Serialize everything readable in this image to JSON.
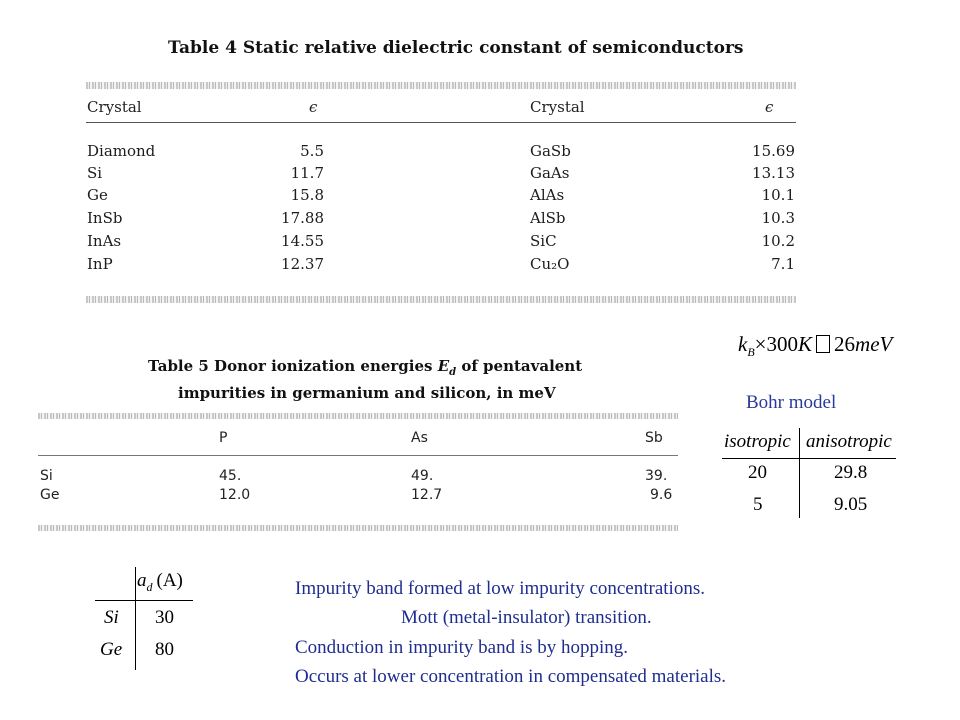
{
  "table4": {
    "title": "Table 4  Static relative dielectric constant of semiconductors",
    "headers": {
      "crystal_left": "Crystal",
      "eps_left": "ϵ",
      "crystal_right": "Crystal",
      "eps_right": "ϵ"
    },
    "rows_left": [
      {
        "crystal": "Diamond",
        "eps": "5.5"
      },
      {
        "crystal": "Si",
        "eps": "11.7"
      },
      {
        "crystal": "Ge",
        "eps": "15.8"
      },
      {
        "crystal": "InSb",
        "eps": "17.88"
      },
      {
        "crystal": "InAs",
        "eps": "14.55"
      },
      {
        "crystal": "InP",
        "eps": "12.37"
      }
    ],
    "rows_right": [
      {
        "crystal": "GaSb",
        "eps": "15.69"
      },
      {
        "crystal": "GaAs",
        "eps": "13.13"
      },
      {
        "crystal": "AlAs",
        "eps": "10.1"
      },
      {
        "crystal": "AlSb",
        "eps": "10.3"
      },
      {
        "crystal": "SiC",
        "eps": "10.2"
      },
      {
        "crystal": "Cu₂O",
        "eps": "7.1"
      }
    ]
  },
  "table5": {
    "title_line1": "Table 5  Donor ionization energies E_d of pentavalent",
    "title_line1_pre": "Table 5  Donor ionization energies ",
    "title_line1_E": "E",
    "title_line1_sub": "d",
    "title_line1_post": " of pentavalent",
    "title_line2": "impurities in germanium and silicon, in meV",
    "headers": [
      "P",
      "As",
      "Sb"
    ],
    "rows": [
      {
        "label": "Si",
        "values": [
          "45.",
          "49.",
          "39."
        ]
      },
      {
        "label": "Ge",
        "values": [
          "12.0",
          "12.7",
          "9.6"
        ]
      }
    ]
  },
  "formula": {
    "k": "k",
    "k_sub": "B",
    "times": "×300",
    "K": "K",
    "box": "",
    "rhs": "26",
    "meV": "meV"
  },
  "bohr_model": {
    "title": "Bohr model",
    "headers": [
      "isotropic",
      "anisotropic"
    ],
    "rows": [
      [
        "20",
        "29.8"
      ],
      [
        "5",
        "9.05"
      ]
    ]
  },
  "ad_table": {
    "header_a": "a",
    "header_sub": "d",
    "header_unit": "(A)",
    "rows": [
      {
        "label": "Si",
        "value": "30"
      },
      {
        "label": "Ge",
        "value": "80"
      }
    ]
  },
  "notes": [
    "Impurity band formed at low impurity concentrations.",
    "Mott (metal-insulator) transition.",
    "Conduction in impurity band is by hopping.",
    "Occurs at lower concentration in compensated materials."
  ],
  "colors": {
    "note_text": "#1f2d8f",
    "scan_text": "#1c1c1c"
  }
}
